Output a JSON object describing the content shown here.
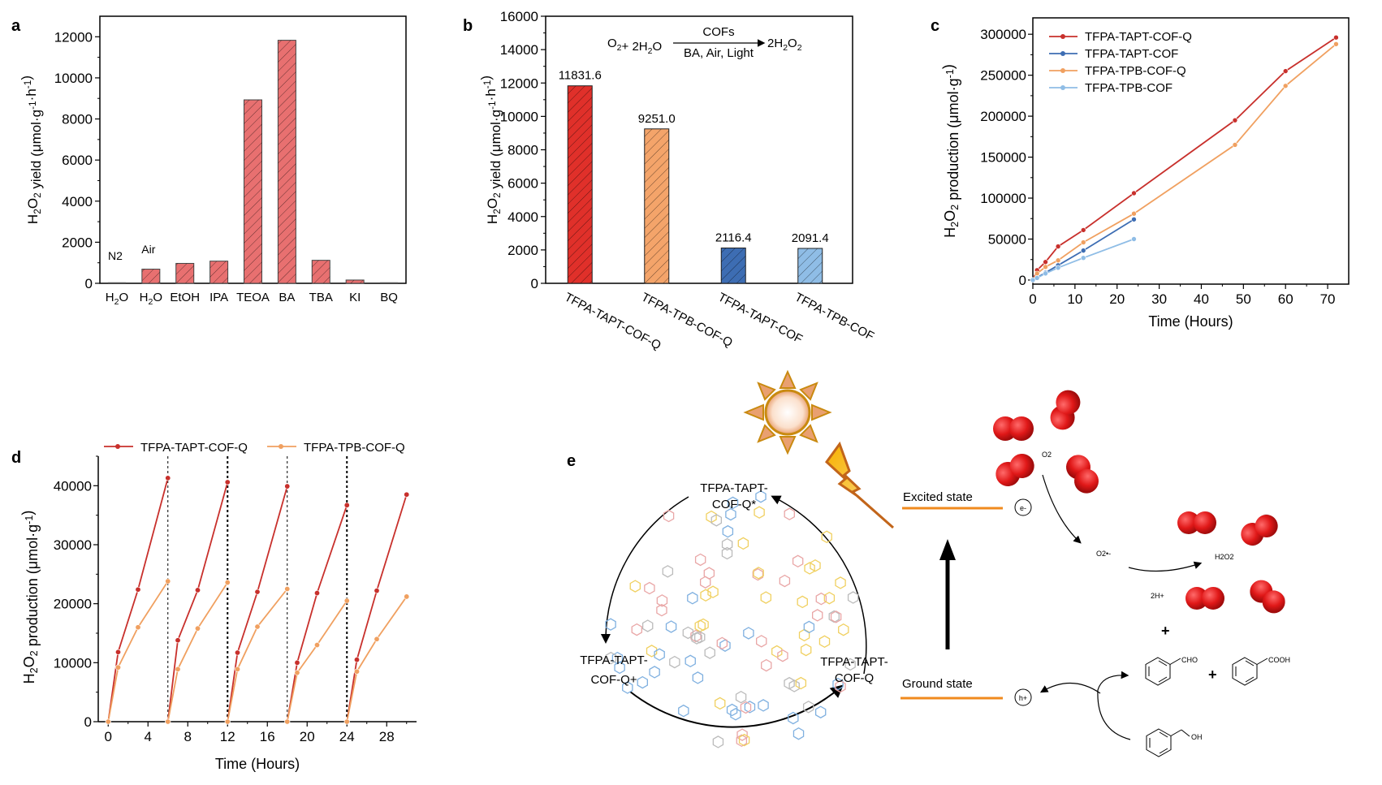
{
  "panels": {
    "a": {
      "letter": "a"
    },
    "b": {
      "letter": "b"
    },
    "c": {
      "letter": "c"
    },
    "d": {
      "letter": "d"
    },
    "e": {
      "letter": "e"
    }
  },
  "chart_data": [
    {
      "id": "a",
      "type": "bar",
      "title": "",
      "xlabel": "",
      "ylabel": "H2O2 yield (μmol·g-1·h-1)",
      "ylim": [
        0,
        13000
      ],
      "yticks": [
        0,
        2000,
        4000,
        6000,
        8000,
        10000,
        12000
      ],
      "categories": [
        "H2O",
        "H2O",
        "EtOH",
        "IPA",
        "TEOA",
        "BA",
        "TBA",
        "KI",
        "BQ"
      ],
      "values": [
        0,
        690,
        970,
        1080,
        8930,
        11830,
        1120,
        160,
        0
      ],
      "annotations": [
        "N2",
        "Air"
      ],
      "color": "#e87070",
      "grid": false
    },
    {
      "id": "b",
      "type": "bar",
      "title": "",
      "xlabel": "",
      "ylabel": "H2O2 yield (μmol·g-1·h-1)",
      "ylim": [
        0,
        16000
      ],
      "yticks": [
        0,
        2000,
        4000,
        6000,
        8000,
        10000,
        12000,
        14000,
        16000
      ],
      "categories": [
        "TFPA-TAPT-COF-Q",
        "TFPA-TPB-COF-Q",
        "TFPA-TAPT-COF",
        "TFPA-TPB-COF"
      ],
      "values": [
        11831.6,
        9251.0,
        2116.4,
        2091.4
      ],
      "data_labels": [
        "11831.6",
        "9251.0",
        "2116.4",
        "2091.4"
      ],
      "colors": [
        "#e0302a",
        "#f4a46a",
        "#3d6db3",
        "#8fbde6"
      ],
      "equation": {
        "left": "O2+ 2H2O",
        "above": "COFs",
        "below": "BA, Air, Light",
        "right": "2H2O2"
      },
      "grid": false
    },
    {
      "id": "c",
      "type": "line",
      "title": "",
      "xlabel": "Time (Hours)",
      "ylabel": "H2O2 production (μmol·g-1)",
      "xlim": [
        0,
        75
      ],
      "ylim": [
        -5000,
        320000
      ],
      "xticks": [
        0,
        10,
        20,
        30,
        40,
        50,
        60,
        70
      ],
      "yticks": [
        0,
        50000,
        100000,
        150000,
        200000,
        250000,
        300000
      ],
      "legend_position": "top-left",
      "series": [
        {
          "name": "TFPA-TAPT-COF-Q",
          "color": "#c8302c",
          "x": [
            0,
            1,
            3,
            6,
            12,
            24,
            48,
            60,
            72
          ],
          "y": [
            0,
            12000,
            22000,
            41000,
            61000,
            106000,
            195000,
            255000,
            296000
          ]
        },
        {
          "name": "TFPA-TAPT-COF",
          "color": "#3d6db3",
          "x": [
            0,
            1,
            3,
            6,
            12,
            24
          ],
          "y": [
            0,
            3000,
            9000,
            18000,
            36000,
            74000
          ]
        },
        {
          "name": "TFPA-TPB-COF-Q",
          "color": "#f0a060",
          "x": [
            0,
            1,
            3,
            6,
            12,
            24,
            48,
            60,
            72
          ],
          "y": [
            0,
            8000,
            16000,
            24000,
            46000,
            81000,
            165000,
            237000,
            288000
          ]
        },
        {
          "name": "TFPA-TPB-COF",
          "color": "#8fbde6",
          "x": [
            0,
            1,
            3,
            6,
            12,
            24
          ],
          "y": [
            0,
            2500,
            8000,
            15000,
            27000,
            50000
          ]
        }
      ],
      "grid": false
    },
    {
      "id": "d",
      "type": "line",
      "title": "",
      "xlabel": "Time (Hours)",
      "ylabel": "H2O2 production (μmol·g-1)",
      "xlim": [
        -1,
        31
      ],
      "ylim": [
        0,
        45000
      ],
      "xticks": [
        0,
        4,
        8,
        12,
        16,
        20,
        24,
        28
      ],
      "yticks": [
        0,
        10000,
        20000,
        30000,
        40000
      ],
      "cycle_boundaries": [
        6,
        12,
        18,
        24
      ],
      "legend_position": "top",
      "series": [
        {
          "name": "TFPA-TAPT-COF-Q",
          "color": "#c8302c",
          "segments": [
            {
              "x": [
                0,
                1,
                3,
                6
              ],
              "y": [
                0,
                11800,
                22400,
                41300
              ]
            },
            {
              "x": [
                6,
                7,
                9,
                12
              ],
              "y": [
                0,
                13800,
                22300,
                40600
              ]
            },
            {
              "x": [
                12,
                13,
                15,
                18
              ],
              "y": [
                0,
                11700,
                22000,
                39900
              ]
            },
            {
              "x": [
                18,
                19,
                21,
                24
              ],
              "y": [
                0,
                10000,
                21800,
                36700
              ]
            },
            {
              "x": [
                24,
                25,
                27,
                30
              ],
              "y": [
                0,
                10500,
                22200,
                38500
              ]
            }
          ]
        },
        {
          "name": "TFPA-TPB-COF-Q",
          "color": "#f0a060",
          "segments": [
            {
              "x": [
                0,
                1,
                3,
                6
              ],
              "y": [
                0,
                9200,
                16000,
                23800
              ]
            },
            {
              "x": [
                6,
                7,
                9,
                12
              ],
              "y": [
                0,
                8900,
                15800,
                23600
              ]
            },
            {
              "x": [
                12,
                13,
                15,
                18
              ],
              "y": [
                0,
                8900,
                16100,
                22500
              ]
            },
            {
              "x": [
                18,
                19,
                21,
                24
              ],
              "y": [
                0,
                8300,
                13000,
                20500
              ]
            },
            {
              "x": [
                24,
                25,
                27,
                30
              ],
              "y": [
                0,
                8500,
                14000,
                21200
              ]
            }
          ]
        }
      ],
      "grid": false
    }
  ],
  "scheme": {
    "excited_label": "TFPA-TAPT-COF-Q*",
    "excited_label_l1": "TFPA-TAPT-",
    "excited_label_l2": "COF-Q*",
    "oxidized_l1": "TFPA-TAPT-",
    "oxidized_l2": "COF-Q+",
    "ground_l1": "TFPA-TAPT-",
    "ground_l2": "COF-Q",
    "excited_state": "Excited state",
    "ground_state": "Ground state",
    "electron": "e-",
    "hole": "h+",
    "o2": "O2",
    "superoxide": "O2•-",
    "h2o2": "H2O2",
    "protons": "2H+",
    "plus": "+",
    "cho": "CHO",
    "cooh": "COOH",
    "oh": "OH",
    "level_color": "#f08a1e",
    "oxygen_color": "#e02020"
  }
}
